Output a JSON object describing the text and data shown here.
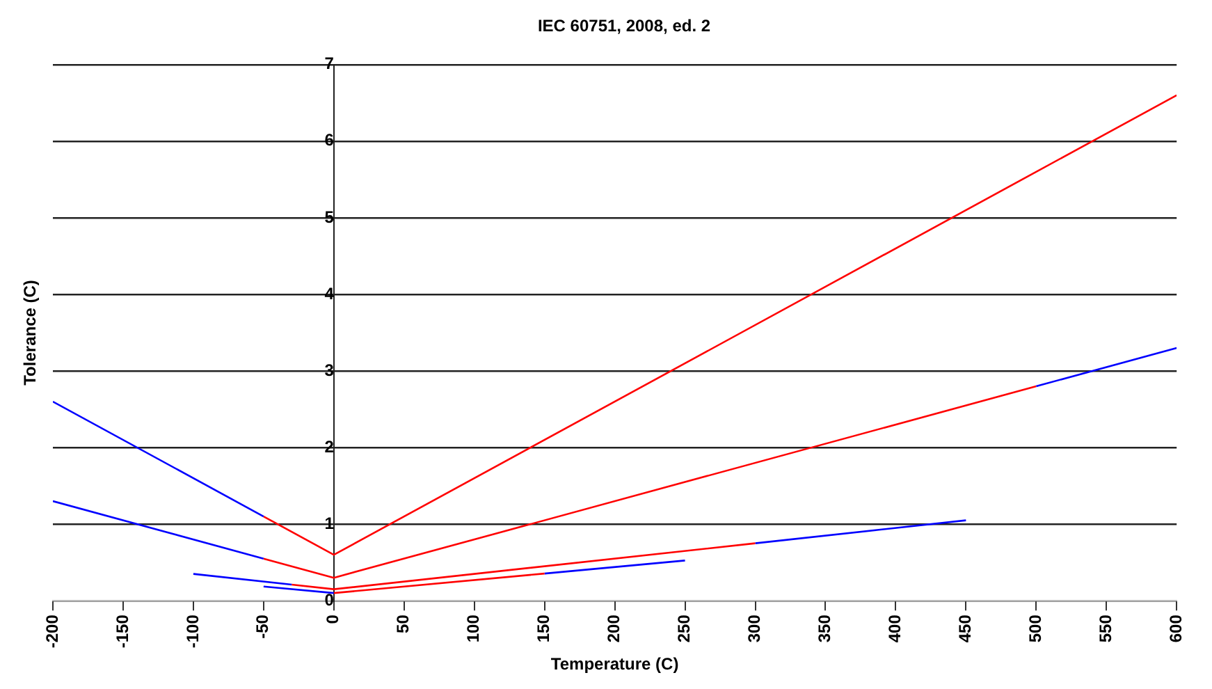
{
  "chart_data": {
    "type": "line",
    "title": "IEC 60751, 2008, ed. 2",
    "xlabel": "Temperature (C)",
    "ylabel": "Tolerance (C)",
    "xlim": [
      -200,
      600
    ],
    "xticks": [
      -200,
      -150,
      -100,
      -50,
      0,
      50,
      100,
      150,
      200,
      250,
      300,
      350,
      400,
      450,
      500,
      550,
      600
    ],
    "ylim": [
      0,
      7
    ],
    "yticks": [
      0,
      1,
      2,
      3,
      4,
      5,
      6,
      7
    ],
    "grid": "y",
    "marker": "none",
    "line_style": "solid",
    "series": [
      {
        "color": "#0000ff",
        "x": [
          -200,
          -50
        ],
        "values": [
          2.6,
          1.1
        ]
      },
      {
        "color": "#ff0000",
        "x": [
          -50,
          0,
          600
        ],
        "values": [
          1.1,
          0.6,
          6.6
        ]
      },
      {
        "color": "#0000ff",
        "x": [
          -200,
          -50
        ],
        "values": [
          1.3,
          0.55
        ]
      },
      {
        "color": "#ff0000",
        "x": [
          -50,
          0,
          500
        ],
        "values": [
          0.55,
          0.3,
          2.8
        ]
      },
      {
        "color": "#0000ff",
        "x": [
          500,
          600
        ],
        "values": [
          2.8,
          3.3
        ]
      },
      {
        "color": "#0000ff",
        "x": [
          -100,
          -30
        ],
        "values": [
          0.35,
          0.21
        ]
      },
      {
        "color": "#ff0000",
        "x": [
          -30,
          0,
          300
        ],
        "values": [
          0.21,
          0.15,
          0.75
        ]
      },
      {
        "color": "#0000ff",
        "x": [
          300,
          450
        ],
        "values": [
          0.75,
          1.05
        ]
      },
      {
        "color": "#0000ff",
        "x": [
          -50,
          0
        ],
        "values": [
          0.185,
          0.1
        ]
      },
      {
        "color": "#ff0000",
        "x": [
          0,
          150
        ],
        "values": [
          0.1,
          0.355
        ]
      },
      {
        "color": "#0000ff",
        "x": [
          150,
          250
        ],
        "values": [
          0.355,
          0.525
        ]
      }
    ]
  }
}
